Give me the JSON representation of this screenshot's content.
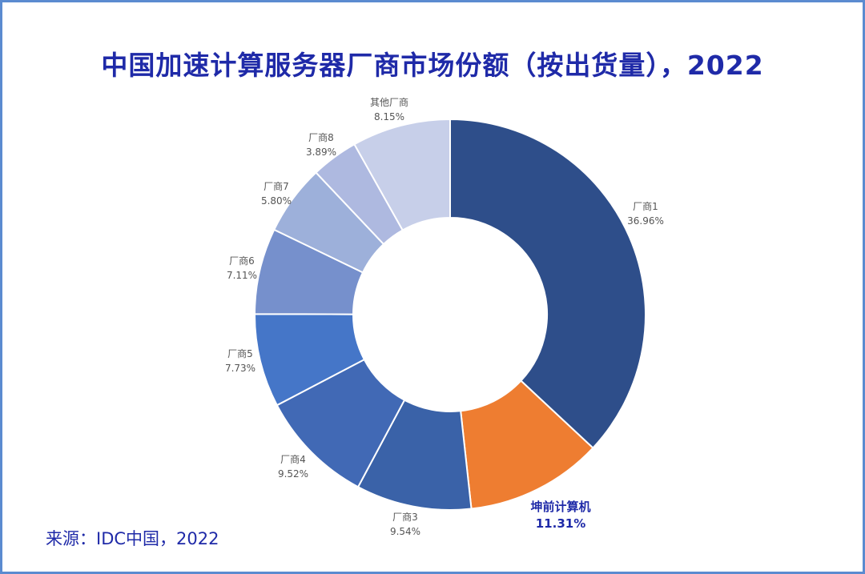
{
  "chart_data": {
    "type": "pie",
    "variant": "donut",
    "title": "中国加速计算服务器厂商市场份额（按出货量），2022",
    "categories": [
      "厂商1",
      "坤前计算机",
      "厂商3",
      "厂商4",
      "厂商5",
      "厂商6",
      "厂商7",
      "厂商8",
      "其他厂商"
    ],
    "values": [
      36.96,
      11.31,
      9.54,
      9.52,
      7.73,
      7.11,
      5.8,
      3.89,
      8.15
    ],
    "value_labels": [
      "36.96%",
      "11.31%",
      "9.54%",
      "9.52%",
      "7.73%",
      "7.11%",
      "5.80%",
      "3.89%",
      "8.15%"
    ],
    "colors": [
      "#2e4e8a",
      "#ee7d31",
      "#3a62a8",
      "#4169b5",
      "#4576c8",
      "#7690cc",
      "#9db0da",
      "#aeb9e0",
      "#c7cfe9"
    ],
    "highlight_index": 1,
    "source": "来源：IDC中国，2022"
  }
}
